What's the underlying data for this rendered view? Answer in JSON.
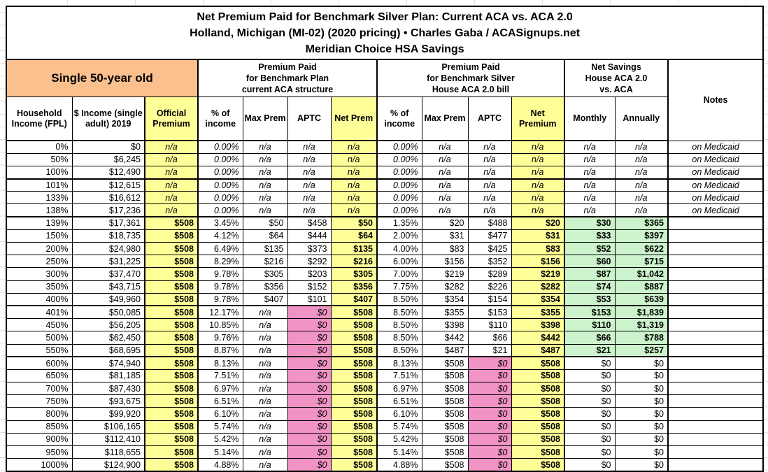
{
  "title": [
    "Net Premium Paid for Benchmark Silver Plan: Current ACA vs. ACA 2.0",
    "Holland, Michigan (MI-02) (2020 pricing) • Charles Gaba / ACASignups.net",
    "Meridian Choice HSA Savings"
  ],
  "group_headers": {
    "subject": "Single 50-year old",
    "aca": [
      "Premium Paid",
      "for Benchmark Plan",
      "current ACA structure"
    ],
    "house": [
      "Premium Paid",
      "for Benchmark Silver",
      "House ACA 2.0 bill"
    ],
    "savings": [
      "Net Savings",
      "House ACA 2.0",
      "vs. ACA"
    ],
    "notes": "Notes"
  },
  "columns": {
    "fpl": "Household Income (FPL)",
    "income": "$ Income (single adult) 2019",
    "official": "Official Premium",
    "pct": "% of income",
    "max": "Max Prem",
    "aptc": "APTC",
    "aca_net": "Net Prem",
    "h_net": "Net Premium",
    "monthly": "Monthly",
    "annually": "Annually"
  },
  "colors": {
    "highlight_yellow": "#FFFF99",
    "subject_orange": "#FBC08E",
    "zero_aptc_pink": "#F193C5",
    "savings_green": "#CCF3CC"
  },
  "rows": [
    {
      "fpl": "0%",
      "income": "$0",
      "official": "n/a",
      "aca_pct": "0.00%",
      "aca_max": "n/a",
      "aca_aptc": "n/a",
      "aca_net": "n/a",
      "h_pct": "0.00%",
      "h_max": "n/a",
      "h_aptc": "n/a",
      "h_net": "n/a",
      "monthly": "n/a",
      "annually": "n/a",
      "note": "on Medicaid"
    },
    {
      "fpl": "50%",
      "income": "$6,245",
      "official": "n/a",
      "aca_pct": "0.00%",
      "aca_max": "n/a",
      "aca_aptc": "n/a",
      "aca_net": "n/a",
      "h_pct": "0.00%",
      "h_max": "n/a",
      "h_aptc": "n/a",
      "h_net": "n/a",
      "monthly": "n/a",
      "annually": "n/a",
      "note": "on Medicaid"
    },
    {
      "fpl": "100%",
      "income": "$12,490",
      "official": "n/a",
      "aca_pct": "0.00%",
      "aca_max": "n/a",
      "aca_aptc": "n/a",
      "aca_net": "n/a",
      "h_pct": "0.00%",
      "h_max": "n/a",
      "h_aptc": "n/a",
      "h_net": "n/a",
      "monthly": "n/a",
      "annually": "n/a",
      "note": "on Medicaid"
    },
    {
      "fpl": "101%",
      "income": "$12,615",
      "official": "n/a",
      "aca_pct": "0.00%",
      "aca_max": "n/a",
      "aca_aptc": "n/a",
      "aca_net": "n/a",
      "h_pct": "0.00%",
      "h_max": "n/a",
      "h_aptc": "n/a",
      "h_net": "n/a",
      "monthly": "n/a",
      "annually": "n/a",
      "note": "on Medicaid"
    },
    {
      "fpl": "133%",
      "income": "$16,612",
      "official": "n/a",
      "aca_pct": "0.00%",
      "aca_max": "n/a",
      "aca_aptc": "n/a",
      "aca_net": "n/a",
      "h_pct": "0.00%",
      "h_max": "n/a",
      "h_aptc": "n/a",
      "h_net": "n/a",
      "monthly": "n/a",
      "annually": "n/a",
      "note": "on Medicaid"
    },
    {
      "fpl": "138%",
      "income": "$17,236",
      "official": "n/a",
      "aca_pct": "0.00%",
      "aca_max": "n/a",
      "aca_aptc": "n/a",
      "aca_net": "n/a",
      "h_pct": "0.00%",
      "h_max": "n/a",
      "h_aptc": "n/a",
      "h_net": "n/a",
      "monthly": "n/a",
      "annually": "n/a",
      "note": "on Medicaid"
    },
    {
      "fpl": "139%",
      "income": "$17,361",
      "official": "$508",
      "aca_pct": "3.45%",
      "aca_max": "$50",
      "aca_aptc": "$458",
      "aca_net": "$50",
      "h_pct": "1.35%",
      "h_max": "$20",
      "h_aptc": "$488",
      "h_net": "$20",
      "monthly": "$30",
      "annually": "$365",
      "note": ""
    },
    {
      "fpl": "150%",
      "income": "$18,735",
      "official": "$508",
      "aca_pct": "4.12%",
      "aca_max": "$64",
      "aca_aptc": "$444",
      "aca_net": "$64",
      "h_pct": "2.00%",
      "h_max": "$31",
      "h_aptc": "$477",
      "h_net": "$31",
      "monthly": "$33",
      "annually": "$397",
      "note": ""
    },
    {
      "fpl": "200%",
      "income": "$24,980",
      "official": "$508",
      "aca_pct": "6.49%",
      "aca_max": "$135",
      "aca_aptc": "$373",
      "aca_net": "$135",
      "h_pct": "4.00%",
      "h_max": "$83",
      "h_aptc": "$425",
      "h_net": "$83",
      "monthly": "$52",
      "annually": "$622",
      "note": ""
    },
    {
      "fpl": "250%",
      "income": "$31,225",
      "official": "$508",
      "aca_pct": "8.29%",
      "aca_max": "$216",
      "aca_aptc": "$292",
      "aca_net": "$216",
      "h_pct": "6.00%",
      "h_max": "$156",
      "h_aptc": "$352",
      "h_net": "$156",
      "monthly": "$60",
      "annually": "$715",
      "note": ""
    },
    {
      "fpl": "300%",
      "income": "$37,470",
      "official": "$508",
      "aca_pct": "9.78%",
      "aca_max": "$305",
      "aca_aptc": "$203",
      "aca_net": "$305",
      "h_pct": "7.00%",
      "h_max": "$219",
      "h_aptc": "$289",
      "h_net": "$219",
      "monthly": "$87",
      "annually": "$1,042",
      "note": ""
    },
    {
      "fpl": "350%",
      "income": "$43,715",
      "official": "$508",
      "aca_pct": "9.78%",
      "aca_max": "$356",
      "aca_aptc": "$152",
      "aca_net": "$356",
      "h_pct": "7.75%",
      "h_max": "$282",
      "h_aptc": "$226",
      "h_net": "$282",
      "monthly": "$74",
      "annually": "$887",
      "note": ""
    },
    {
      "fpl": "400%",
      "income": "$49,960",
      "official": "$508",
      "aca_pct": "9.78%",
      "aca_max": "$407",
      "aca_aptc": "$101",
      "aca_net": "$407",
      "h_pct": "8.50%",
      "h_max": "$354",
      "h_aptc": "$154",
      "h_net": "$354",
      "monthly": "$53",
      "annually": "$639",
      "note": ""
    },
    {
      "fpl": "401%",
      "income": "$50,085",
      "official": "$508",
      "aca_pct": "12.17%",
      "aca_max": "n/a",
      "aca_aptc": "$0",
      "aca_net": "$508",
      "h_pct": "8.50%",
      "h_max": "$355",
      "h_aptc": "$153",
      "h_net": "$355",
      "monthly": "$153",
      "annually": "$1,839",
      "note": ""
    },
    {
      "fpl": "450%",
      "income": "$56,205",
      "official": "$508",
      "aca_pct": "10.85%",
      "aca_max": "n/a",
      "aca_aptc": "$0",
      "aca_net": "$508",
      "h_pct": "8.50%",
      "h_max": "$398",
      "h_aptc": "$110",
      "h_net": "$398",
      "monthly": "$110",
      "annually": "$1,319",
      "note": ""
    },
    {
      "fpl": "500%",
      "income": "$62,450",
      "official": "$508",
      "aca_pct": "9.76%",
      "aca_max": "n/a",
      "aca_aptc": "$0",
      "aca_net": "$508",
      "h_pct": "8.50%",
      "h_max": "$442",
      "h_aptc": "$66",
      "h_net": "$442",
      "monthly": "$66",
      "annually": "$788",
      "note": ""
    },
    {
      "fpl": "550%",
      "income": "$68,695",
      "official": "$508",
      "aca_pct": "8.87%",
      "aca_max": "n/a",
      "aca_aptc": "$0",
      "aca_net": "$508",
      "h_pct": "8.50%",
      "h_max": "$487",
      "h_aptc": "$21",
      "h_net": "$487",
      "monthly": "$21",
      "annually": "$257",
      "note": ""
    },
    {
      "fpl": "600%",
      "income": "$74,940",
      "official": "$508",
      "aca_pct": "8.13%",
      "aca_max": "n/a",
      "aca_aptc": "$0",
      "aca_net": "$508",
      "h_pct": "8.13%",
      "h_max": "$508",
      "h_aptc": "$0",
      "h_net": "$508",
      "monthly": "$0",
      "annually": "$0",
      "note": ""
    },
    {
      "fpl": "650%",
      "income": "$81,185",
      "official": "$508",
      "aca_pct": "7.51%",
      "aca_max": "n/a",
      "aca_aptc": "$0",
      "aca_net": "$508",
      "h_pct": "7.51%",
      "h_max": "$508",
      "h_aptc": "$0",
      "h_net": "$508",
      "monthly": "$0",
      "annually": "$0",
      "note": ""
    },
    {
      "fpl": "700%",
      "income": "$87,430",
      "official": "$508",
      "aca_pct": "6.97%",
      "aca_max": "n/a",
      "aca_aptc": "$0",
      "aca_net": "$508",
      "h_pct": "6.97%",
      "h_max": "$508",
      "h_aptc": "$0",
      "h_net": "$508",
      "monthly": "$0",
      "annually": "$0",
      "note": ""
    },
    {
      "fpl": "750%",
      "income": "$93,675",
      "official": "$508",
      "aca_pct": "6.51%",
      "aca_max": "n/a",
      "aca_aptc": "$0",
      "aca_net": "$508",
      "h_pct": "6.51%",
      "h_max": "$508",
      "h_aptc": "$0",
      "h_net": "$508",
      "monthly": "$0",
      "annually": "$0",
      "note": ""
    },
    {
      "fpl": "800%",
      "income": "$99,920",
      "official": "$508",
      "aca_pct": "6.10%",
      "aca_max": "n/a",
      "aca_aptc": "$0",
      "aca_net": "$508",
      "h_pct": "6.10%",
      "h_max": "$508",
      "h_aptc": "$0",
      "h_net": "$508",
      "monthly": "$0",
      "annually": "$0",
      "note": ""
    },
    {
      "fpl": "850%",
      "income": "$106,165",
      "official": "$508",
      "aca_pct": "5.74%",
      "aca_max": "n/a",
      "aca_aptc": "$0",
      "aca_net": "$508",
      "h_pct": "5.74%",
      "h_max": "$508",
      "h_aptc": "$0",
      "h_net": "$508",
      "monthly": "$0",
      "annually": "$0",
      "note": ""
    },
    {
      "fpl": "900%",
      "income": "$112,410",
      "official": "$508",
      "aca_pct": "5.42%",
      "aca_max": "n/a",
      "aca_aptc": "$0",
      "aca_net": "$508",
      "h_pct": "5.42%",
      "h_max": "$508",
      "h_aptc": "$0",
      "h_net": "$508",
      "monthly": "$0",
      "annually": "$0",
      "note": ""
    },
    {
      "fpl": "950%",
      "income": "$118,655",
      "official": "$508",
      "aca_pct": "5.14%",
      "aca_max": "n/a",
      "aca_aptc": "$0",
      "aca_net": "$508",
      "h_pct": "5.14%",
      "h_max": "$508",
      "h_aptc": "$0",
      "h_net": "$508",
      "monthly": "$0",
      "annually": "$0",
      "note": ""
    },
    {
      "fpl": "1000%",
      "income": "$124,900",
      "official": "$508",
      "aca_pct": "4.88%",
      "aca_max": "n/a",
      "aca_aptc": "$0",
      "aca_net": "$508",
      "h_pct": "4.88%",
      "h_max": "$508",
      "h_aptc": "$0",
      "h_net": "$508",
      "monthly": "$0",
      "annually": "$0",
      "note": ""
    }
  ]
}
